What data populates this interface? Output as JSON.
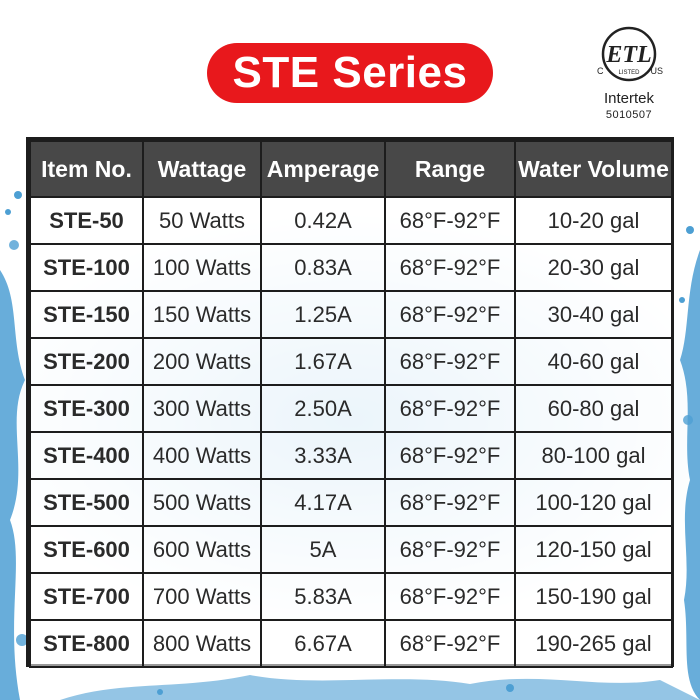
{
  "title": "STE Series",
  "certification": {
    "mark": "ETL",
    "left_text": "C",
    "right_text": "US",
    "listed": "LISTED",
    "brand": "Intertek",
    "number": "5010507"
  },
  "table": {
    "headers": [
      "Item No.",
      "Wattage",
      "Amperage",
      "Range",
      "Water Volume"
    ],
    "rows": [
      [
        "STE-50",
        "50 Watts",
        "0.42A",
        "68°F-92°F",
        "10-20 gal"
      ],
      [
        "STE-100",
        "100 Watts",
        "0.83A",
        "68°F-92°F",
        "20-30 gal"
      ],
      [
        "STE-150",
        "150 Watts",
        "1.25A",
        "68°F-92°F",
        "30-40 gal"
      ],
      [
        "STE-200",
        "200 Watts",
        "1.67A",
        "68°F-92°F",
        "40-60 gal"
      ],
      [
        "STE-300",
        "300 Watts",
        "2.50A",
        "68°F-92°F",
        "60-80 gal"
      ],
      [
        "STE-400",
        "400 Watts",
        "3.33A",
        "68°F-92°F",
        "80-100 gal"
      ],
      [
        "STE-500",
        "500 Watts",
        "4.17A",
        "68°F-92°F",
        "100-120 gal"
      ],
      [
        "STE-600",
        "600 Watts",
        "5A",
        "68°F-92°F",
        "120-150 gal"
      ],
      [
        "STE-700",
        "700 Watts",
        "5.83A",
        "68°F-92°F",
        "150-190 gal"
      ],
      [
        "STE-800",
        "800 Watts",
        "6.67A",
        "68°F-92°F",
        "190-265 gal"
      ]
    ]
  },
  "colors": {
    "title_bg": "#e8181c",
    "header_bg": "#484848",
    "border": "#1d1d1d",
    "water": "#5aa9d6"
  }
}
